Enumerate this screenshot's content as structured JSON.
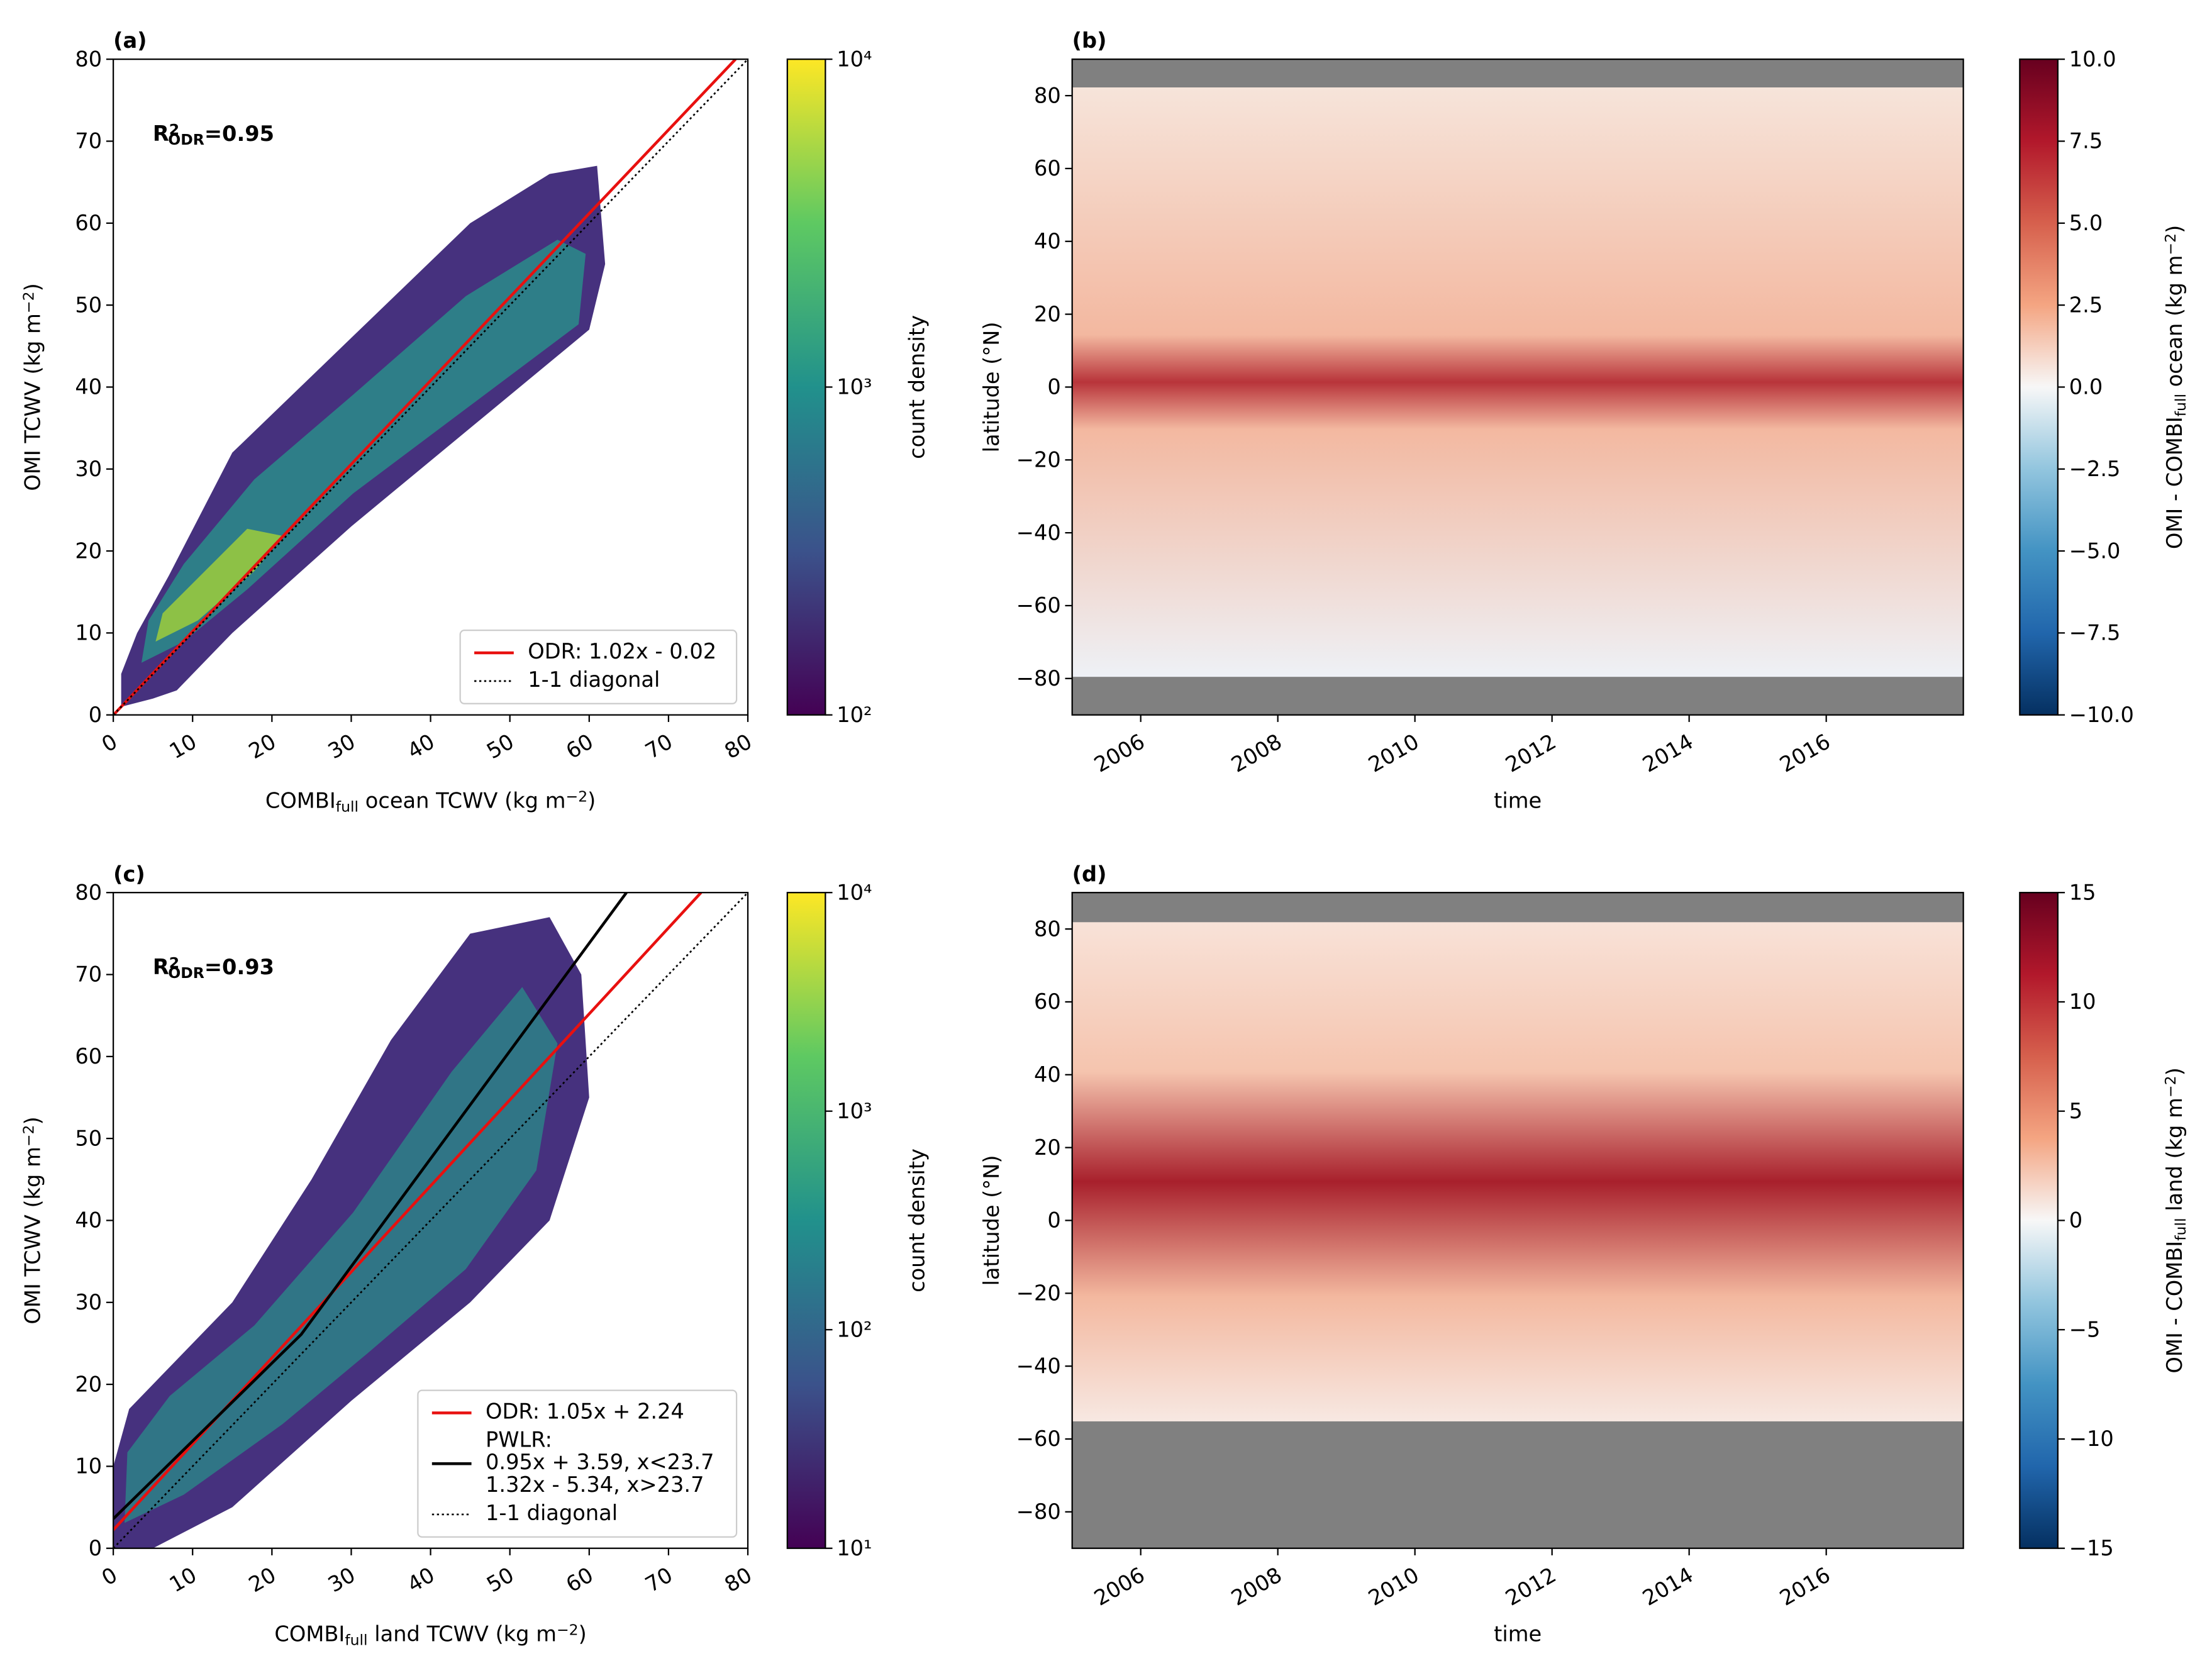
{
  "chart_data": [
    {
      "type": "hexbin",
      "title": "(a)",
      "annotation": [
        "R",
        {
          "sup": "2"
        },
        {
          "sub": "ODR"
        },
        "=0.95"
      ],
      "xlabel": [
        "COMBI",
        {
          "sub": "full"
        },
        " ocean TCWV (kg m",
        {
          "sup": "−2"
        },
        ")"
      ],
      "ylabel": [
        "OMI TCWV (kg m",
        {
          "sup": "−2"
        },
        ")"
      ],
      "xlim": [
        0,
        80
      ],
      "ylim": [
        0,
        80
      ],
      "xticks": [
        0,
        10,
        20,
        30,
        40,
        50,
        60,
        70,
        80
      ],
      "yticks": [
        0,
        10,
        20,
        30,
        40,
        50,
        60,
        70,
        80
      ],
      "series": [
        {
          "name": [
            "ODR: 1.02x - 0.02"
          ],
          "color": "#e8100f",
          "linestyle": "solid",
          "x": [
            0,
            78.45
          ],
          "values": [
            -0.02,
            80
          ]
        },
        {
          "name": [
            "1-1 diagonal"
          ],
          "color": "#000000",
          "linestyle": "dotted",
          "x": [
            0,
            80
          ],
          "values": [
            0,
            80
          ]
        }
      ],
      "legend": "lower right",
      "colorbar": {
        "label": [
          "count density"
        ],
        "log": true,
        "lim": [
          100,
          10000
        ],
        "ticks": [
          {
            "value": 100,
            "label": "10²"
          },
          {
            "value": 1000,
            "label": "10³"
          },
          {
            "value": 10000,
            "label": "10⁴"
          }
        ],
        "colors": [
          "#440154",
          "#3b528b",
          "#21918c",
          "#5ec962",
          "#fde725"
        ]
      }
    },
    {
      "type": "heatmap",
      "title": "(b)",
      "xlabel": [
        "time"
      ],
      "ylabel": [
        "latitude (°N)"
      ],
      "xlim": [
        2005,
        2018
      ],
      "ylim": [
        -90,
        90
      ],
      "xticks": [
        2006,
        2008,
        2010,
        2012,
        2014,
        2016
      ],
      "yticks": [
        {
          "value": -80,
          "label": "−80"
        },
        {
          "value": -60,
          "label": "−60"
        },
        {
          "value": -40,
          "label": "−40"
        },
        {
          "value": -20,
          "label": "−20"
        },
        0,
        20,
        40,
        60,
        80
      ],
      "colorbar": {
        "label": [
          "OMI - COMBI",
          {
            "sub": "full"
          },
          " ocean (kg m",
          {
            "sup": "−2"
          },
          ")"
        ],
        "log": false,
        "lim": [
          -10,
          10
        ],
        "ticks": [
          {
            "value": -10,
            "label": "−10.0"
          },
          {
            "value": -7.5,
            "label": "−7.5"
          },
          {
            "value": -5,
            "label": "−5.0"
          },
          {
            "value": -2.5,
            "label": "−2.5"
          },
          {
            "value": 0,
            "label": "0.0"
          },
          2.5,
          {
            "value": 5,
            "label": "5.0"
          },
          7.5,
          {
            "value": 10,
            "label": "10.0"
          }
        ],
        "colors": [
          "#053061",
          "#2166ac",
          "#4393c3",
          "#92c5de",
          "#f7f7f7",
          "#f4a582",
          "#d6604d",
          "#b2182b",
          "#67001f"
        ]
      }
    },
    {
      "type": "hexbin",
      "title": "(c)",
      "annotation": [
        "R",
        {
          "sup": "2"
        },
        {
          "sub": "ODR"
        },
        "=0.93"
      ],
      "xlabel": [
        "COMBI",
        {
          "sub": "full"
        },
        " land TCWV (kg m",
        {
          "sup": "−2"
        },
        ")"
      ],
      "ylabel": [
        "OMI TCWV (kg m",
        {
          "sup": "−2"
        },
        ")"
      ],
      "xlim": [
        0,
        80
      ],
      "ylim": [
        0,
        80
      ],
      "xticks": [
        0,
        10,
        20,
        30,
        40,
        50,
        60,
        70,
        80
      ],
      "yticks": [
        0,
        10,
        20,
        30,
        40,
        50,
        60,
        70,
        80
      ],
      "series": [
        {
          "name": [
            "ODR: 1.05x + 2.24"
          ],
          "color": "#e8100f",
          "linestyle": "solid",
          "x": [
            0,
            74.1
          ],
          "values": [
            2.24,
            80
          ]
        },
        {
          "name": [
            "PWLR:",
            "0.95x + 3.59, x<23.7",
            "1.32x - 5.34, x>23.7"
          ],
          "color": "#000000",
          "linestyle": "solid",
          "x": [
            0,
            23.7,
            64.7
          ],
          "values": [
            3.59,
            26.1,
            80
          ]
        },
        {
          "name": [
            "1-1 diagonal"
          ],
          "color": "#000000",
          "linestyle": "dotted",
          "x": [
            0,
            80
          ],
          "values": [
            0,
            80
          ]
        }
      ],
      "legend": "lower right",
      "colorbar": {
        "label": [
          "count density"
        ],
        "log": true,
        "lim": [
          10,
          10000
        ],
        "ticks": [
          {
            "value": 10,
            "label": "10¹"
          },
          {
            "value": 100,
            "label": "10²"
          },
          {
            "value": 1000,
            "label": "10³"
          },
          {
            "value": 10000,
            "label": "10⁴"
          }
        ],
        "colors": [
          "#440154",
          "#3b528b",
          "#21918c",
          "#5ec962",
          "#fde725"
        ]
      }
    },
    {
      "type": "heatmap",
      "title": "(d)",
      "xlabel": [
        "time"
      ],
      "ylabel": [
        "latitude (°N)"
      ],
      "xlim": [
        2005,
        2018
      ],
      "ylim": [
        -90,
        90
      ],
      "xticks": [
        2006,
        2008,
        2010,
        2012,
        2014,
        2016
      ],
      "yticks": [
        {
          "value": -80,
          "label": "−80"
        },
        {
          "value": -60,
          "label": "−60"
        },
        {
          "value": -40,
          "label": "−40"
        },
        {
          "value": -20,
          "label": "−20"
        },
        0,
        20,
        40,
        60,
        80
      ],
      "colorbar": {
        "label": [
          "OMI - COMBI",
          {
            "sub": "full"
          },
          " land (kg m",
          {
            "sup": "−2"
          },
          ")"
        ],
        "log": false,
        "lim": [
          -15,
          15
        ],
        "ticks": [
          {
            "value": -15,
            "label": "−15"
          },
          {
            "value": -10,
            "label": "−10"
          },
          {
            "value": -5,
            "label": "−5"
          },
          0,
          5,
          10,
          15
        ],
        "colors": [
          "#053061",
          "#2166ac",
          "#4393c3",
          "#92c5de",
          "#f7f7f7",
          "#f4a582",
          "#d6604d",
          "#b2182b",
          "#67001f"
        ]
      }
    }
  ]
}
